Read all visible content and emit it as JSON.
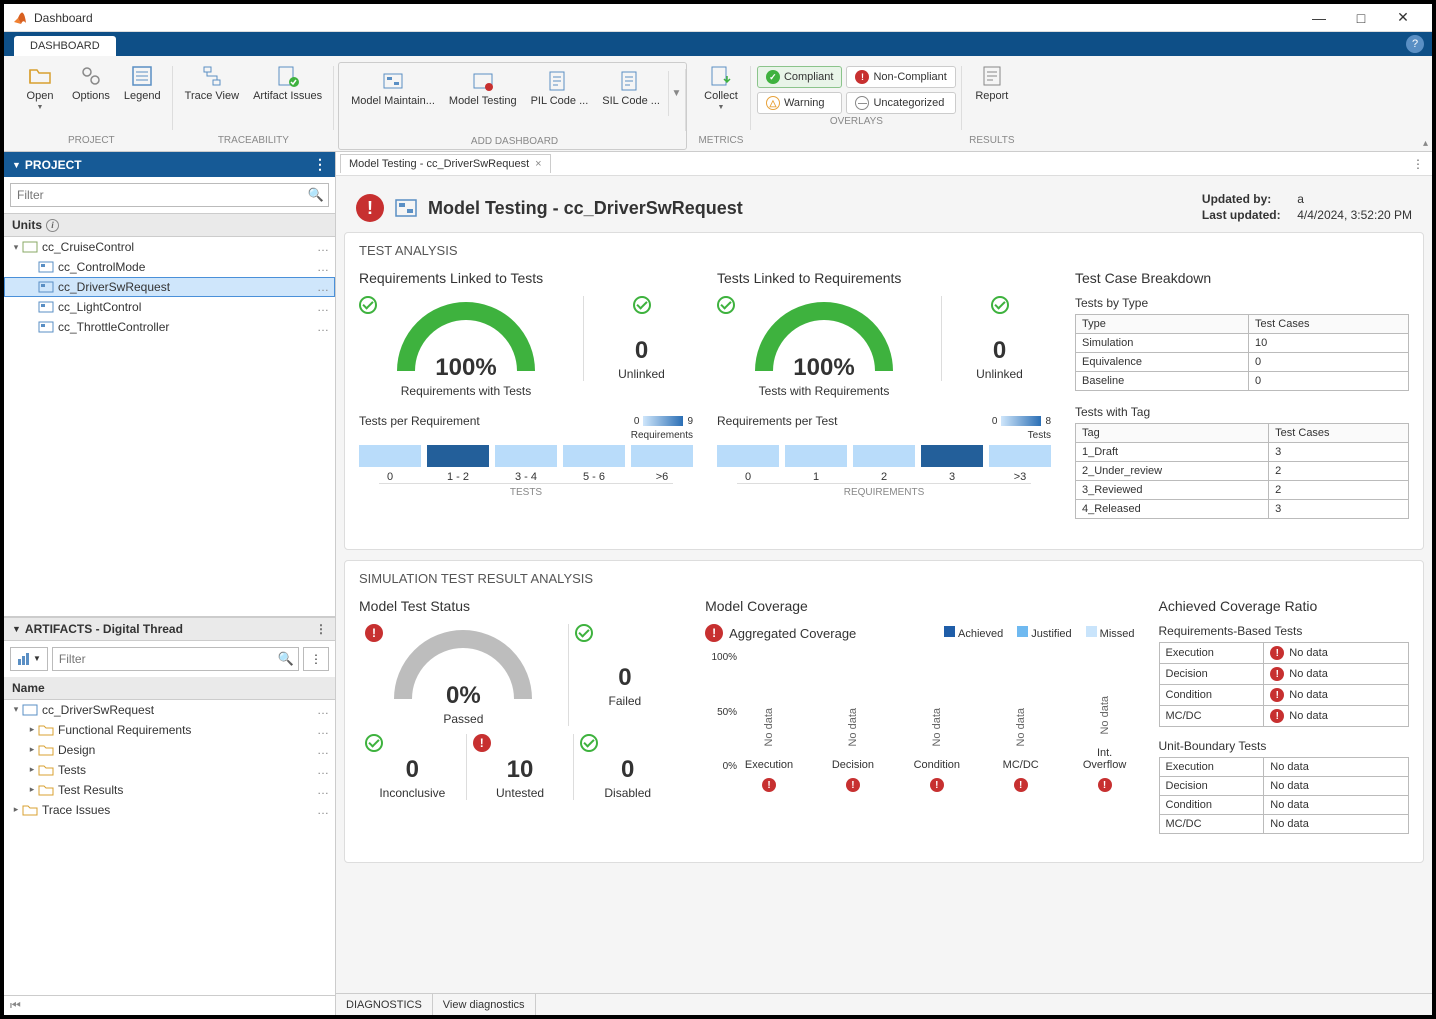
{
  "titlebar": {
    "title": "Dashboard"
  },
  "tabs": {
    "main": "DASHBOARD"
  },
  "ribbon": {
    "project_label": "PROJECT",
    "open": "Open",
    "options": "Options",
    "legend": "Legend",
    "trace_label": "TRACEABILITY",
    "trace_view": "Trace View",
    "artifact_issues": "Artifact Issues",
    "add_dash_label": "ADD DASHBOARD",
    "model_maintain": "Model Maintain...",
    "model_testing": "Model Testing",
    "pil_code": "PIL Code ...",
    "sil_code": "SIL Code ...",
    "metrics_label": "METRICS",
    "collect": "Collect",
    "overlays_label": "OVERLAYS",
    "compliant": "Compliant",
    "non_compliant": "Non-Compliant",
    "warning": "Warning",
    "uncategorized": "Uncategorized",
    "results_label": "RESULTS",
    "report": "Report"
  },
  "sidebar": {
    "project_title": "PROJECT",
    "filter_placeholder": "Filter",
    "units_label": "Units",
    "tree": {
      "root": "cc_CruiseControl",
      "items": [
        "cc_ControlMode",
        "cc_DriverSwRequest",
        "cc_LightControl",
        "cc_ThrottleController"
      ],
      "selected_index": 1
    },
    "artifacts_title": "ARTIFACTS - Digital Thread",
    "artifacts_filter_placeholder": "Filter",
    "name_col": "Name",
    "art_root": "cc_DriverSwRequest",
    "art_items": [
      "Functional Requirements",
      "Design",
      "Tests",
      "Test Results"
    ],
    "trace_issues": "Trace Issues"
  },
  "doc_tab": "Model Testing - cc_DriverSwRequest",
  "header": {
    "title": "Model Testing - cc_DriverSwRequest",
    "updated_by_label": "Updated by:",
    "updated_by": "a",
    "last_updated_label": "Last updated:",
    "last_updated": "4/4/2024, 3:52:20 PM"
  },
  "test_analysis": {
    "title": "TEST ANALYSIS",
    "req_linked": {
      "title": "Requirements Linked to Tests",
      "gauge_value": "100%",
      "gauge_label": "Requirements with Tests",
      "gauge_color": "#3eb23e",
      "side_value": "0",
      "side_label": "Unlinked",
      "dist_title": "Tests per Requirement",
      "scale_min": "0",
      "scale_max": "9",
      "scale_unit": "Requirements",
      "bins": [
        "0",
        "1 - 2",
        "3 - 4",
        "5 - 6",
        ">6"
      ],
      "bin_colors": [
        "#b9dcfa",
        "#235f9a",
        "#b9dcfa",
        "#b9dcfa",
        "#b9dcfa"
      ],
      "axis": "TESTS"
    },
    "tests_linked": {
      "title": "Tests Linked to Requirements",
      "gauge_value": "100%",
      "gauge_label": "Tests with Requirements",
      "gauge_color": "#3eb23e",
      "side_value": "0",
      "side_label": "Unlinked",
      "dist_title": "Requirements per Test",
      "scale_min": "0",
      "scale_max": "8",
      "scale_unit": "Tests",
      "bins": [
        "0",
        "1",
        "2",
        "3",
        ">3"
      ],
      "bin_colors": [
        "#b9dcfa",
        "#b9dcfa",
        "#b9dcfa",
        "#235f9a",
        "#b9dcfa"
      ],
      "axis": "REQUIREMENTS"
    },
    "breakdown": {
      "title": "Test Case Breakdown",
      "by_type_title": "Tests by Type",
      "type_col": "Type",
      "tc_col": "Test Cases",
      "by_type": [
        {
          "k": "Simulation",
          "v": "10"
        },
        {
          "k": "Equivalence",
          "v": "0"
        },
        {
          "k": "Baseline",
          "v": "0"
        }
      ],
      "with_tag_title": "Tests with Tag",
      "tag_col": "Tag",
      "with_tag": [
        {
          "k": "1_Draft",
          "v": "3"
        },
        {
          "k": "2_Under_review",
          "v": "2"
        },
        {
          "k": "3_Reviewed",
          "v": "2"
        },
        {
          "k": "4_Released",
          "v": "3"
        }
      ]
    }
  },
  "sim_analysis": {
    "title": "SIMULATION TEST RESULT ANALYSIS",
    "status": {
      "title": "Model Test Status",
      "gauge_value": "0%",
      "gauge_label": "Passed",
      "gauge_color": "#bdbdbd",
      "failed_value": "0",
      "failed_label": "Failed",
      "row2": [
        {
          "v": "0",
          "l": "Inconclusive",
          "icon": "check"
        },
        {
          "v": "10",
          "l": "Untested",
          "icon": "err"
        },
        {
          "v": "0",
          "l": "Disabled",
          "icon": "check"
        }
      ]
    },
    "coverage": {
      "title": "Model Coverage",
      "agg_label": "Aggregated Coverage",
      "legend": [
        {
          "l": "Achieved",
          "c": "#1f5da8"
        },
        {
          "l": "Justified",
          "c": "#6fb9f0"
        },
        {
          "l": "Missed",
          "c": "#c9e4fb"
        }
      ],
      "y_labels": [
        "100%",
        "50%",
        "0%"
      ],
      "cols": [
        {
          "l": "Execution",
          "v": "No data",
          "err": true
        },
        {
          "l": "Decision",
          "v": "No data",
          "err": true
        },
        {
          "l": "Condition",
          "v": "No data",
          "err": true
        },
        {
          "l": "MC/DC",
          "v": "No data",
          "err": true
        },
        {
          "l": "Int. Overflow",
          "v": "No data",
          "err": true
        }
      ]
    },
    "ratio": {
      "title": "Achieved Coverage Ratio",
      "req_title": "Requirements-Based Tests",
      "req_rows": [
        {
          "k": "Execution",
          "v": "No data",
          "err": true
        },
        {
          "k": "Decision",
          "v": "No data",
          "err": true
        },
        {
          "k": "Condition",
          "v": "No data",
          "err": true
        },
        {
          "k": "MC/DC",
          "v": "No data",
          "err": true
        }
      ],
      "unit_title": "Unit-Boundary Tests",
      "unit_rows": [
        {
          "k": "Execution",
          "v": "No data",
          "err": false
        },
        {
          "k": "Decision",
          "v": "No data",
          "err": false
        },
        {
          "k": "Condition",
          "v": "No data",
          "err": false
        },
        {
          "k": "MC/DC",
          "v": "No data",
          "err": false
        }
      ]
    }
  },
  "statusbar": {
    "diagnostics": "DIAGNOSTICS",
    "view": "View diagnostics"
  },
  "colors": {
    "accent_blue": "#165a96",
    "green": "#3eb23e",
    "red": "#c73030",
    "orange": "#e8a23a"
  }
}
